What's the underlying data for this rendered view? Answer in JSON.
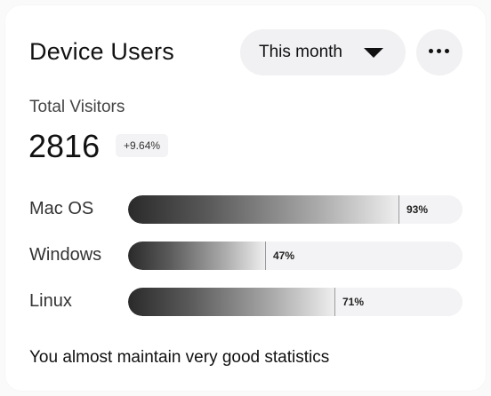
{
  "header": {
    "title": "Device Users",
    "period": {
      "selected": "This month",
      "icon": "caret-down-icon"
    },
    "more_icon": "more-horizontal-icon"
  },
  "summary": {
    "label": "Total Visitors",
    "value": "2816",
    "change": "+9.64%"
  },
  "devices": [
    {
      "name": "Mac OS",
      "percent_label": "93%",
      "fraction": 0.93
    },
    {
      "name": "Windows",
      "percent_label": "47%",
      "fraction": 0.47
    },
    {
      "name": "Linux",
      "percent_label": "71%",
      "fraction": 0.71
    }
  ],
  "footer": {
    "message": "You almost maintain very good statistics"
  },
  "colors": {
    "card_background": "#ffffff",
    "pill_background": "#f1f1f3",
    "bar_dark": "#2a2a2a",
    "bar_light": "#eeeeee",
    "track": "#f3f3f5"
  }
}
